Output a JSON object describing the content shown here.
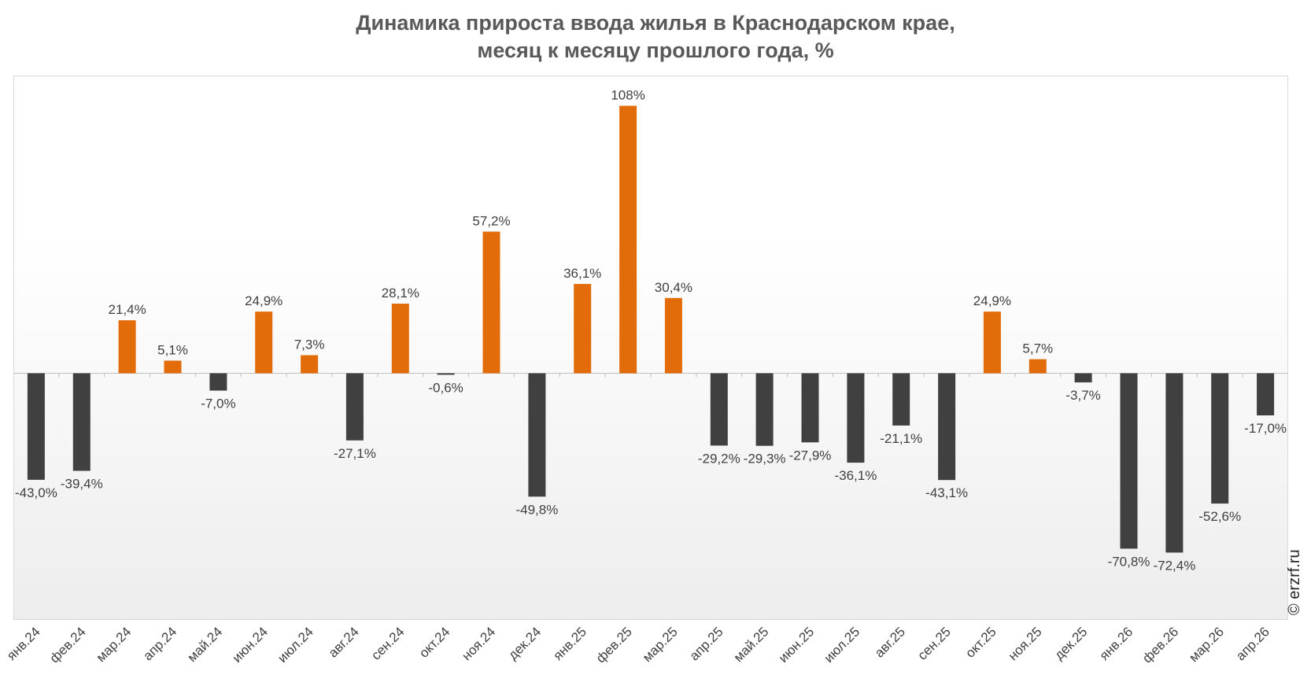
{
  "chart_data": {
    "type": "bar",
    "title": [
      "Динамика прироста ввода жилья в Краснодарском крае,",
      "месяц к месяцу прошлого года, %"
    ],
    "categories": [
      "янв.24",
      "фев.24",
      "мар.24",
      "апр.24",
      "май.24",
      "июн.24",
      "июл.24",
      "авг.24",
      "сен.24",
      "окт.24",
      "ноя.24",
      "дек.24",
      "янв.25",
      "фев.25",
      "мар.25",
      "апр.25",
      "май.25",
      "июн.25",
      "июл.25",
      "авг.25",
      "сен.25",
      "окт.25",
      "ноя.25",
      "дек.25",
      "янв.26",
      "фев.26",
      "мар.26",
      "апр.26"
    ],
    "values": [
      -43.0,
      -39.4,
      21.4,
      5.1,
      -7.0,
      24.9,
      7.3,
      -27.1,
      28.1,
      -0.6,
      57.2,
      -49.8,
      36.1,
      108,
      30.4,
      -29.2,
      -29.3,
      -27.9,
      -36.1,
      -21.1,
      -43.1,
      24.9,
      5.7,
      -3.7,
      -70.8,
      -72.4,
      -52.6,
      -17.0
    ],
    "labels": [
      "-43,0%",
      "-39,4%",
      "21,4%",
      "5,1%",
      "-7,0%",
      "24,9%",
      "7,3%",
      "-27,1%",
      "28,1%",
      "-0,6%",
      "57,2%",
      "-49,8%",
      "36,1%",
      "108%",
      "30,4%",
      "-29,2%",
      "-29,3%",
      "-27,9%",
      "-36,1%",
      "-21,1%",
      "-43,1%",
      "24,9%",
      "5,7%",
      "-3,7%",
      "-70,8%",
      "-72,4%",
      "-52,6%",
      "-17,0%"
    ],
    "positive_color": "#E36C0A",
    "negative_color": "#404040",
    "ylim": [
      -100,
      110
    ],
    "grid": false,
    "legend": "none"
  },
  "watermark": "© erzrf.ru"
}
